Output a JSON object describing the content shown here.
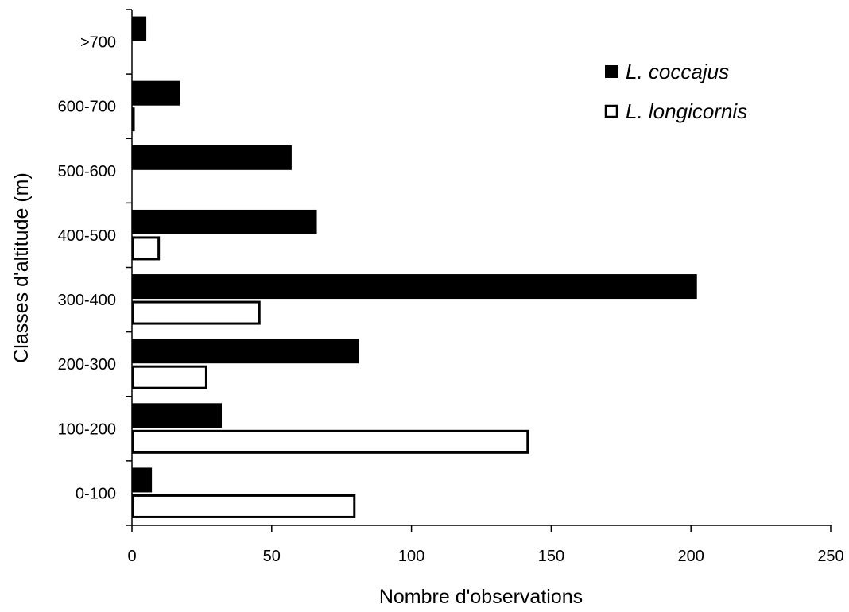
{
  "chart_data": {
    "type": "bar",
    "orientation": "horizontal",
    "title": "",
    "xlabel": "Nombre d'observations",
    "ylabel": "Classes d'altitude (m)",
    "xlim": [
      0,
      250
    ],
    "xticks": [
      0,
      50,
      100,
      150,
      200,
      250
    ],
    "categories": [
      "0-100",
      "100-200",
      "200-300",
      "300-400",
      "400-500",
      "500-600",
      "600-700",
      ">700"
    ],
    "series": [
      {
        "name": "L. coccajus",
        "fill": "#000000",
        "values": [
          7,
          32,
          81,
          202,
          66,
          57,
          17,
          5
        ]
      },
      {
        "name": "L. longicornis",
        "fill": "#ffffff",
        "values": [
          80,
          142,
          27,
          46,
          10,
          0,
          1,
          0
        ]
      }
    ],
    "legend": {
      "position": "top-right"
    },
    "grid": false
  }
}
